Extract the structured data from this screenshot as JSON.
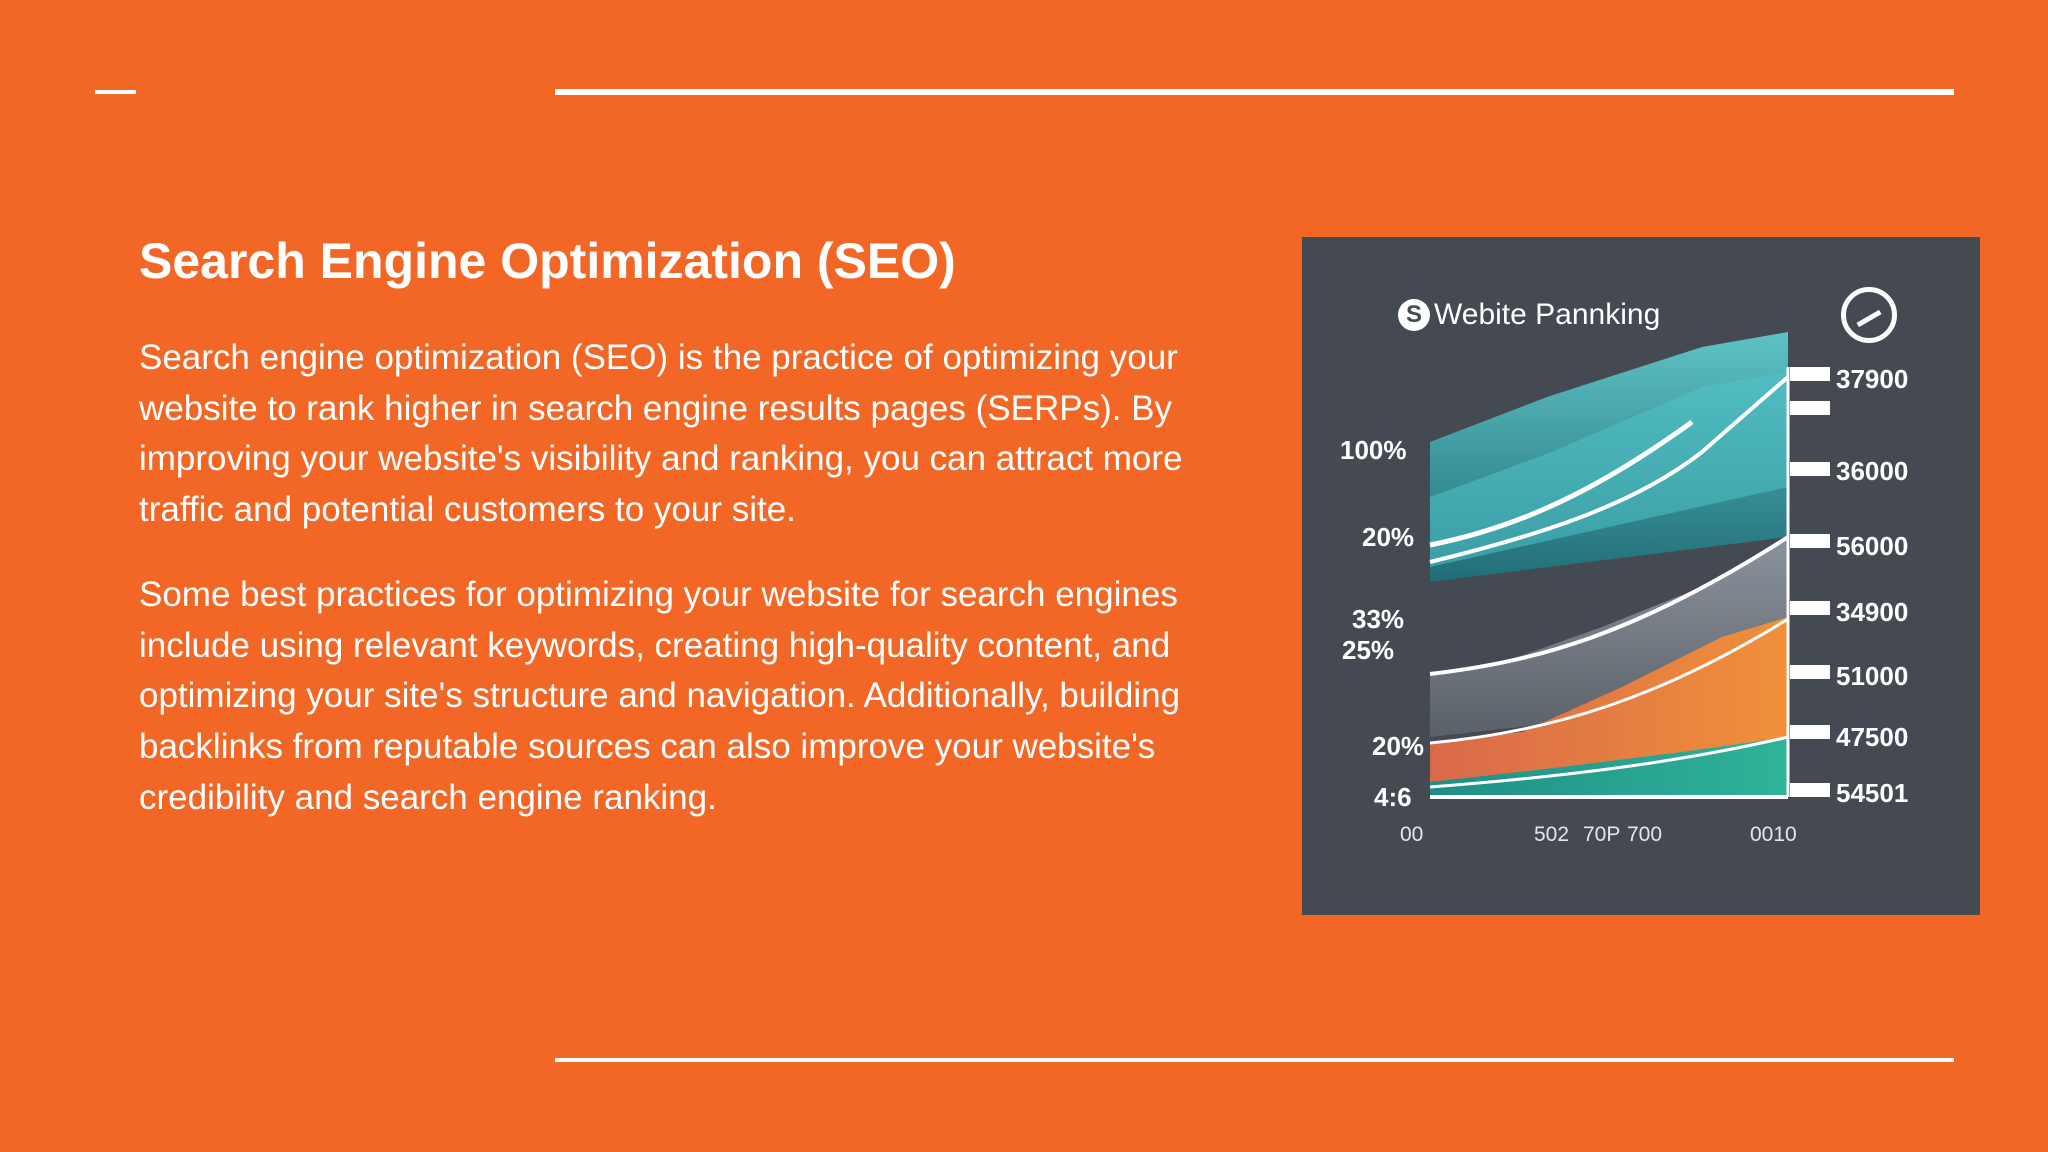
{
  "slide": {
    "title": "Search Engine Optimization (SEO)",
    "paragraphs": [
      "Search engine optimization (SEO) is the practice of optimizing your website to rank higher in search engine results pages (SERPs). By improving your website's visibility and ranking, you can attract more traffic and potential customers to your site.",
      "Some best practices for optimizing your website for search engines include using relevant keywords, creating high-quality content, and optimizing your site's structure and navigation. Additionally, building backlinks from reputable sources can also improve your website's credibility and search engine ranking."
    ],
    "colors": {
      "background": "#f26726",
      "text": "#ffffff",
      "rules": "#ffffff"
    }
  },
  "illustration": {
    "title": "Webite Pannking",
    "logo_glyph": "S",
    "left_labels": [
      "100%",
      "20%",
      "33%",
      "25%",
      "20%",
      "4:6"
    ],
    "right_labels": [
      "37900",
      "36000",
      "56000",
      "34900",
      "51000",
      "47500",
      "54501"
    ],
    "x_ticks": [
      "00",
      "502",
      "70P",
      "700",
      "0010"
    ],
    "colors": {
      "panel": "#454a52",
      "teal": "#2fb3a8",
      "cyan": "#4fc3c8",
      "slate": "#7f8790",
      "orange": "#e47a45",
      "green": "#1f9e8a",
      "line": "#ffffff"
    },
    "icons": [
      "s-logo-icon",
      "gauge-icon"
    ]
  }
}
